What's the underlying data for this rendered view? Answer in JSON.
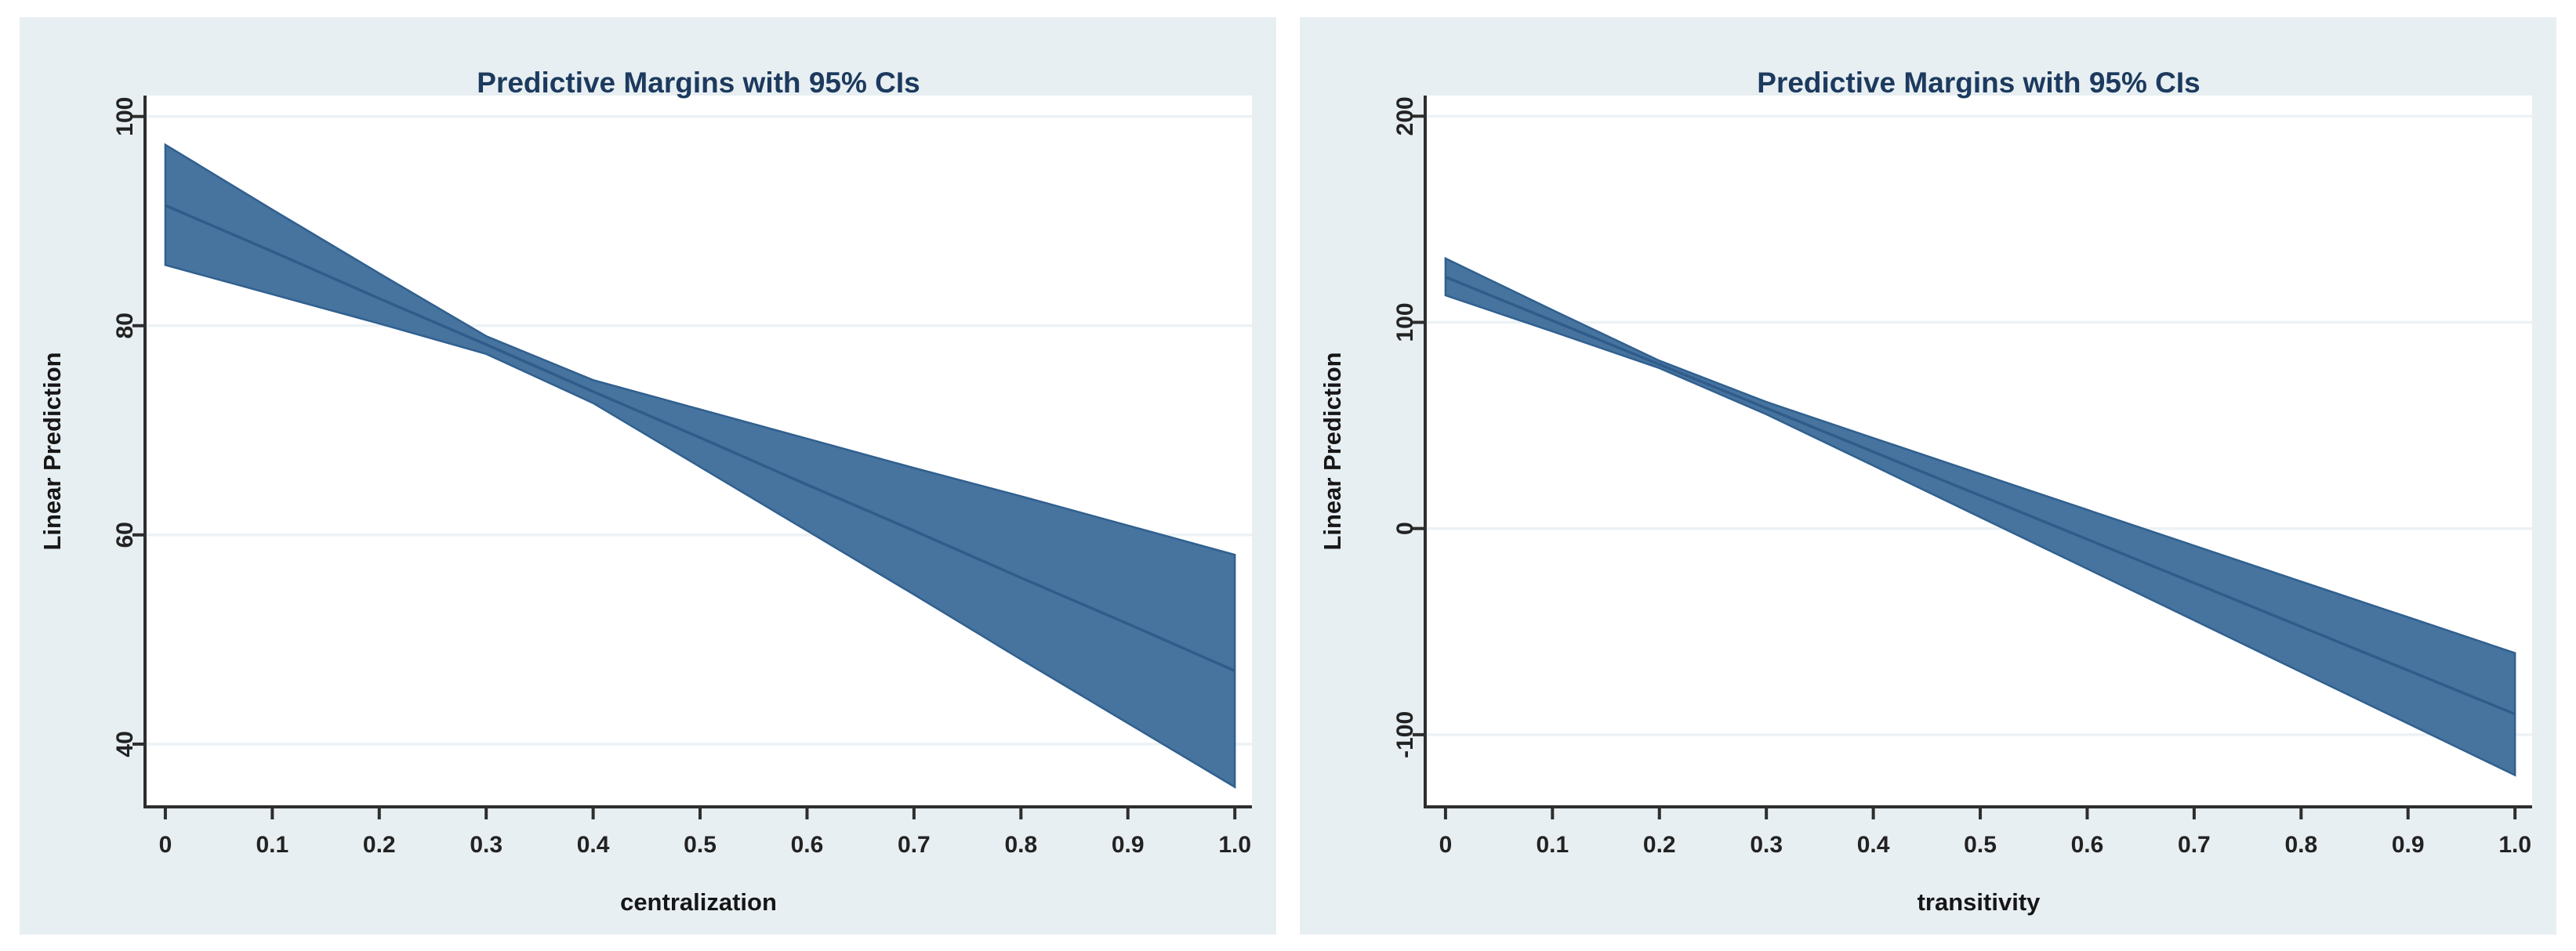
{
  "page": {
    "background": "#ffffff"
  },
  "style": {
    "card_background": "#e8eff2",
    "plot_background": "#ffffff",
    "gridline_color": "#ecf2f5",
    "axis_color": "#2e2e2e",
    "tick_text_color": "#222222",
    "title_color": "#1c3a5e",
    "band_fill": "#47739f",
    "band_edge": "#30608f",
    "line_color": "#2f5c8a"
  },
  "chart_data": [
    {
      "type": "area",
      "title": "Predictive Margins with 95% CIs",
      "xlabel": "centralization",
      "ylabel": "Linear Prediction",
      "x": [
        0,
        0.1,
        0.2,
        0.3,
        0.4,
        0.5,
        0.6,
        0.7,
        0.8,
        0.9,
        1.0
      ],
      "series": [
        {
          "name": "95% CI upper bound",
          "values": [
            97.3,
            91.1,
            85.0,
            79.0,
            74.8,
            72.0,
            69.2,
            66.4,
            63.7,
            60.9,
            58.1
          ]
        },
        {
          "name": "Linear prediction",
          "values": [
            91.5,
            87.1,
            82.6,
            78.2,
            73.7,
            69.3,
            64.8,
            60.4,
            55.9,
            51.5,
            47.0
          ]
        },
        {
          "name": "95% CI lower bound",
          "values": [
            85.8,
            83.0,
            80.2,
            77.3,
            72.6,
            66.5,
            60.4,
            54.3,
            48.1,
            42.0,
            35.9
          ]
        }
      ],
      "xticklabels": [
        "0",
        "0.1",
        "0.2",
        "0.3",
        "0.4",
        "0.5",
        "0.6",
        "0.7",
        "0.8",
        "0.9",
        "1.0"
      ],
      "yticks": [
        40,
        60,
        80,
        100
      ],
      "yticklabels": [
        "40",
        "60",
        "80",
        "100"
      ],
      "xlim": [
        -0.019,
        1.016
      ],
      "ylim": [
        34,
        102
      ],
      "grid": "horizontal-only",
      "legend_position": "none"
    },
    {
      "type": "area",
      "title": "Predictive Margins with 95% CIs",
      "xlabel": "transitivity",
      "ylabel": "Linear Prediction",
      "x": [
        0,
        0.1,
        0.2,
        0.3,
        0.4,
        0.5,
        0.6,
        0.7,
        0.8,
        0.9,
        1.0
      ],
      "series": [
        {
          "name": "95% CI upper bound",
          "values": [
            131.0,
            106.0,
            81.4,
            61.4,
            43.9,
            26.5,
            9.1,
            -8.3,
            -25.7,
            -43.0,
            -60.4
          ]
        },
        {
          "name": "Linear prediction",
          "values": [
            122.0,
            100.8,
            79.6,
            58.4,
            37.2,
            16.0,
            -5.2,
            -26.4,
            -47.6,
            -68.8,
            -90.0
          ]
        },
        {
          "name": "95% CI lower bound",
          "values": [
            113.1,
            95.6,
            77.8,
            55.4,
            30.5,
            5.5,
            -19.5,
            -44.5,
            -69.6,
            -94.6,
            -119.6
          ]
        }
      ],
      "xticklabels": [
        "0",
        "0.1",
        "0.2",
        "0.3",
        "0.4",
        "0.5",
        "0.6",
        "0.7",
        "0.8",
        "0.9",
        "1.0"
      ],
      "yticks": [
        -100,
        0,
        100,
        200
      ],
      "yticklabels": [
        "-100",
        "0",
        "100",
        "200"
      ],
      "xlim": [
        -0.019,
        1.016
      ],
      "ylim": [
        -135,
        210
      ],
      "grid": "horizontal-only",
      "legend_position": "none"
    }
  ]
}
